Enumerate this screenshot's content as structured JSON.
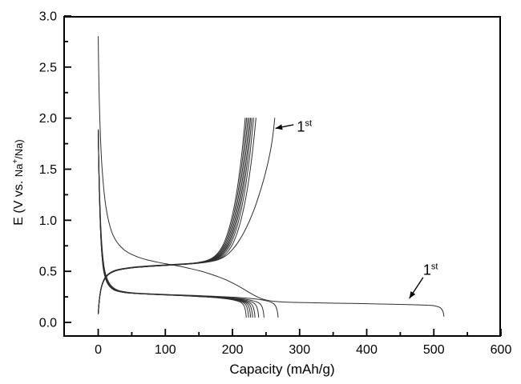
{
  "figure": {
    "background": "#ffffff",
    "frame_color": "#000000",
    "curve_color": "#2e2e2e",
    "text_color": "#000000"
  },
  "chart_data": {
    "type": "line",
    "title": "",
    "xlabel": "Capacity (mAh/g)",
    "ylabel": "E (V vs. Na+/Na)",
    "ylabel_parts": {
      "prefix": "E (V vs. ",
      "na": "Na",
      "sup": "+",
      "suffix": "/Na)"
    },
    "xlim": [
      -52,
      600
    ],
    "ylim": [
      -0.141,
      3.0
    ],
    "grid": false,
    "legend_position": "none",
    "x_ticks": [
      [
        0,
        "0"
      ],
      [
        100,
        "100"
      ],
      [
        200,
        "200"
      ],
      [
        300,
        "300"
      ],
      [
        400,
        "400"
      ],
      [
        500,
        "500"
      ],
      [
        600,
        "600"
      ]
    ],
    "x_minor_ticks": [
      50,
      150,
      250,
      350,
      450,
      550
    ],
    "y_ticks": [
      [
        0,
        "0.0"
      ],
      [
        0.5,
        "0.5"
      ],
      [
        1,
        "1.0"
      ],
      [
        1.5,
        "1.5"
      ],
      [
        2,
        "2.0"
      ],
      [
        2.5,
        "2.5"
      ],
      [
        3,
        "3.0"
      ]
    ],
    "y_minor_ticks": [
      0.25,
      0.75,
      1.25,
      1.75,
      2.25,
      2.75
    ],
    "annotations": [
      {
        "id": "first-charge",
        "base": "1",
        "sup": "st",
        "text_at": [
          296,
          1.87
        ],
        "arrow_from": [
          291,
          1.935
        ],
        "arrow_to": [
          264,
          1.9
        ]
      },
      {
        "id": "first-discharge",
        "base": "1",
        "sup": "st",
        "text_at": [
          484,
          0.465
        ],
        "arrow_from": [
          484,
          0.44
        ],
        "arrow_to": [
          463.5,
          0.235
        ]
      }
    ],
    "first_cycle": {
      "discharge": [
        [
          0,
          2.8
        ],
        [
          0.6,
          2.5
        ],
        [
          1.4,
          2.22
        ],
        [
          2.4,
          1.98
        ],
        [
          3.6,
          1.77
        ],
        [
          5,
          1.58
        ],
        [
          7,
          1.4
        ],
        [
          9,
          1.26
        ],
        [
          11.5,
          1.13
        ],
        [
          14.5,
          1.02
        ],
        [
          18,
          0.93
        ],
        [
          22,
          0.855
        ],
        [
          27,
          0.795
        ],
        [
          33,
          0.745
        ],
        [
          40,
          0.703
        ],
        [
          49,
          0.668
        ],
        [
          60,
          0.638
        ],
        [
          73,
          0.612
        ],
        [
          88,
          0.59
        ],
        [
          104,
          0.57
        ],
        [
          120,
          0.551
        ],
        [
          135,
          0.53
        ],
        [
          150,
          0.507
        ],
        [
          165,
          0.478
        ],
        [
          180,
          0.444
        ],
        [
          194,
          0.406
        ],
        [
          206,
          0.366
        ],
        [
          217,
          0.325
        ],
        [
          227,
          0.285
        ],
        [
          237,
          0.25
        ],
        [
          246,
          0.226
        ],
        [
          255,
          0.213
        ],
        [
          265,
          0.205
        ],
        [
          280,
          0.199
        ],
        [
          300,
          0.195
        ],
        [
          330,
          0.191
        ],
        [
          365,
          0.187
        ],
        [
          400,
          0.183
        ],
        [
          435,
          0.178
        ],
        [
          462,
          0.174
        ],
        [
          482,
          0.17
        ],
        [
          496,
          0.166
        ],
        [
          504,
          0.158
        ],
        [
          509,
          0.146
        ],
        [
          512,
          0.127
        ],
        [
          514,
          0.098
        ],
        [
          515,
          0.06
        ]
      ],
      "charge": [
        [
          0,
          0.095
        ],
        [
          0.8,
          0.155
        ],
        [
          1.8,
          0.225
        ],
        [
          3.2,
          0.295
        ],
        [
          5,
          0.355
        ],
        [
          7.5,
          0.405
        ],
        [
          10.5,
          0.443
        ],
        [
          14.5,
          0.472
        ],
        [
          20,
          0.496
        ],
        [
          27,
          0.514
        ],
        [
          36,
          0.527
        ],
        [
          48,
          0.538
        ],
        [
          62,
          0.547
        ],
        [
          78,
          0.555
        ],
        [
          96,
          0.562
        ],
        [
          114,
          0.569
        ],
        [
          132,
          0.576
        ],
        [
          148,
          0.583
        ],
        [
          161,
          0.591
        ],
        [
          171,
          0.601
        ],
        [
          179,
          0.615
        ],
        [
          186,
          0.636
        ],
        [
          193,
          0.668
        ],
        [
          200,
          0.713
        ],
        [
          207,
          0.772
        ],
        [
          214,
          0.845
        ],
        [
          221,
          0.932
        ],
        [
          228,
          1.035
        ],
        [
          235,
          1.155
        ],
        [
          241,
          1.277
        ],
        [
          247,
          1.41
        ],
        [
          252,
          1.54
        ],
        [
          256,
          1.662
        ],
        [
          259,
          1.775
        ],
        [
          261,
          1.875
        ],
        [
          263,
          2.0
        ]
      ]
    },
    "later_cycles": {
      "discharge_profile": [
        [
          0,
          1.885
        ],
        [
          0.003,
          1.6
        ],
        [
          0.007,
          1.3
        ],
        [
          0.012,
          1.04
        ],
        [
          0.018,
          0.82
        ],
        [
          0.026,
          0.64
        ],
        [
          0.036,
          0.51
        ],
        [
          0.05,
          0.425
        ],
        [
          0.068,
          0.368
        ],
        [
          0.09,
          0.333
        ],
        [
          0.115,
          0.312
        ],
        [
          0.15,
          0.299
        ],
        [
          0.19,
          0.29
        ],
        [
          0.24,
          0.284
        ],
        [
          0.3,
          0.279
        ],
        [
          0.37,
          0.274
        ],
        [
          0.45,
          0.269
        ],
        [
          0.53,
          0.264
        ],
        [
          0.61,
          0.258
        ],
        [
          0.68,
          0.253
        ],
        [
          0.75,
          0.247
        ],
        [
          0.81,
          0.24
        ],
        [
          0.86,
          0.232
        ],
        [
          0.9,
          0.223
        ],
        [
          0.93,
          0.213
        ],
        [
          0.95,
          0.204
        ],
        [
          0.965,
          0.194
        ],
        [
          0.978,
          0.178
        ],
        [
          0.988,
          0.153
        ],
        [
          0.994,
          0.12
        ],
        [
          0.998,
          0.085
        ],
        [
          1,
          0.05
        ]
      ],
      "charge_profile": [
        [
          0,
          0.085
        ],
        [
          0.003,
          0.145
        ],
        [
          0.007,
          0.215
        ],
        [
          0.013,
          0.285
        ],
        [
          0.021,
          0.345
        ],
        [
          0.032,
          0.395
        ],
        [
          0.046,
          0.435
        ],
        [
          0.064,
          0.466
        ],
        [
          0.088,
          0.49
        ],
        [
          0.118,
          0.508
        ],
        [
          0.155,
          0.521
        ],
        [
          0.2,
          0.531
        ],
        [
          0.26,
          0.54
        ],
        [
          0.33,
          0.548
        ],
        [
          0.41,
          0.556
        ],
        [
          0.49,
          0.563
        ],
        [
          0.56,
          0.57
        ],
        [
          0.62,
          0.577
        ],
        [
          0.67,
          0.585
        ],
        [
          0.71,
          0.595
        ],
        [
          0.745,
          0.609
        ],
        [
          0.775,
          0.63
        ],
        [
          0.8,
          0.658
        ],
        [
          0.825,
          0.7
        ],
        [
          0.85,
          0.76
        ],
        [
          0.872,
          0.838
        ],
        [
          0.893,
          0.935
        ],
        [
          0.913,
          1.052
        ],
        [
          0.932,
          1.19
        ],
        [
          0.95,
          1.35
        ],
        [
          0.965,
          1.51
        ],
        [
          0.977,
          1.655
        ],
        [
          0.986,
          1.785
        ],
        [
          0.993,
          1.89
        ],
        [
          1,
          2.0
        ]
      ],
      "discharge_end_capacities": [
        268,
        247,
        239,
        233.5,
        230,
        227,
        224,
        220.5
      ],
      "charge_end_capacities": [
        235,
        231.5,
        229,
        227,
        225,
        223,
        221,
        219
      ]
    }
  }
}
